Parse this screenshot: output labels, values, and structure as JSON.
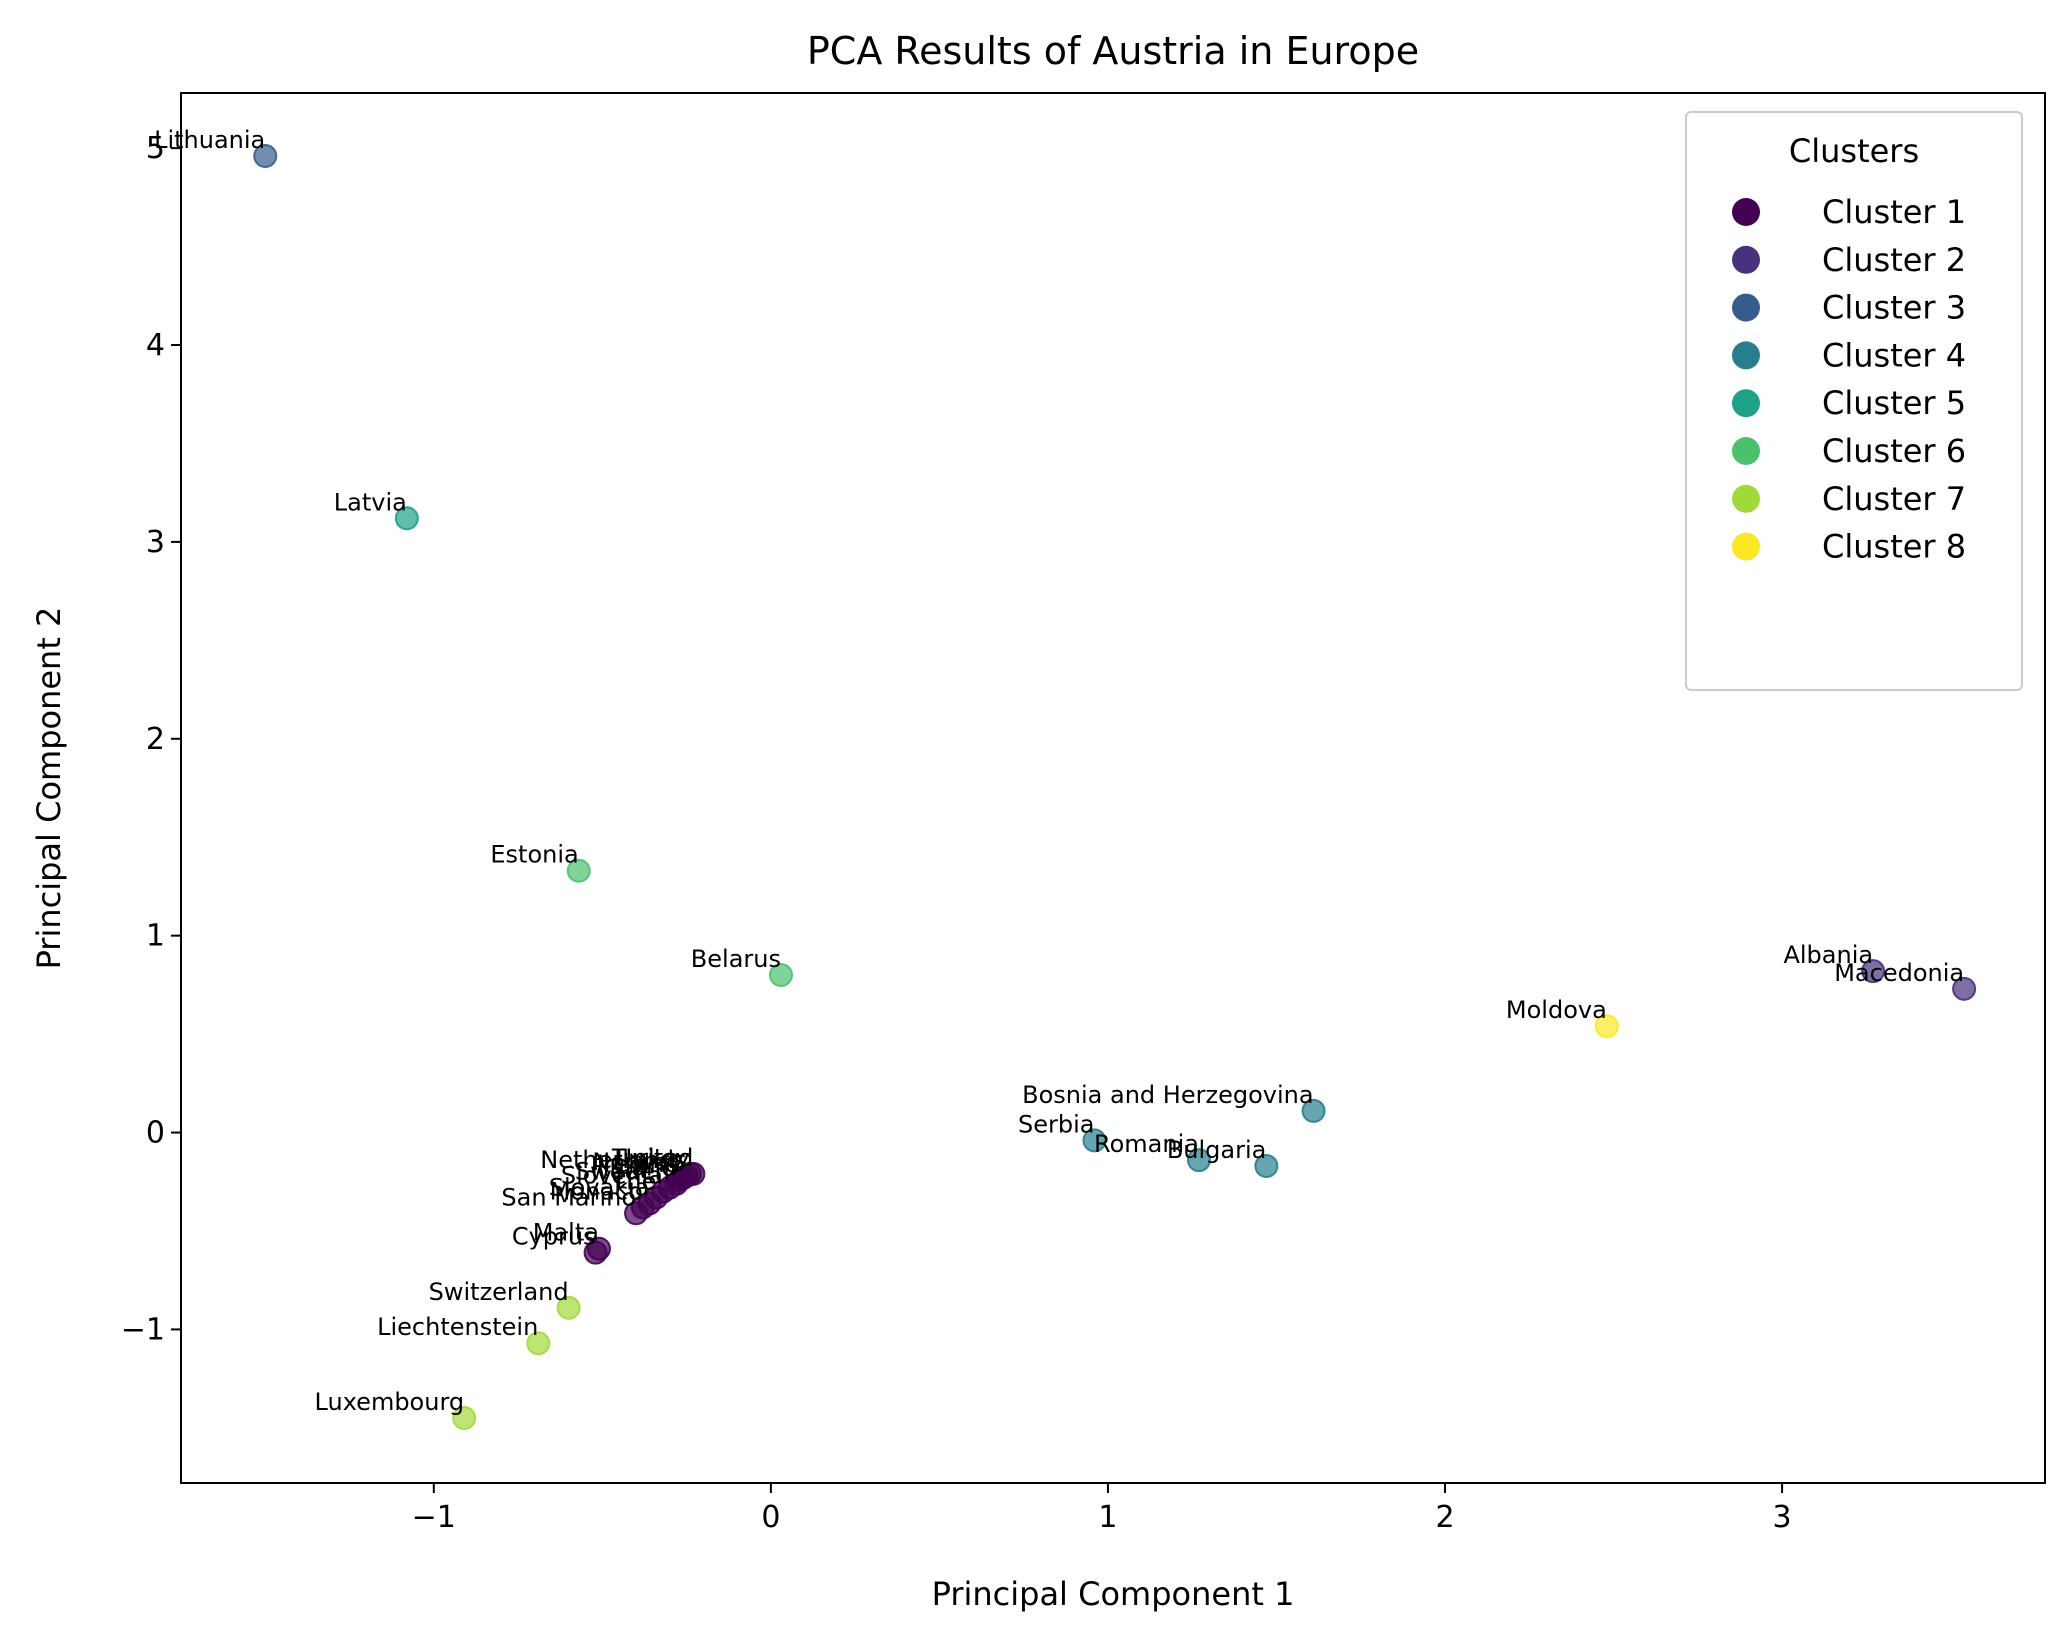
{
  "chart_data": {
    "type": "scatter",
    "title": "PCA Results of Austria in Europe",
    "xlabel": "Principal Component 1",
    "ylabel": "Principal Component 2",
    "xlim": [
      -1.75,
      3.78
    ],
    "ylim": [
      -1.78,
      5.28
    ],
    "xticks": [
      -1,
      0,
      1,
      2,
      3
    ],
    "yticks": [
      -1,
      0,
      1,
      2,
      3,
      4,
      5
    ],
    "xtick_labels": [
      "−1",
      "0",
      "1",
      "2",
      "3"
    ],
    "ytick_labels": [
      "−1",
      "0",
      "1",
      "2",
      "3",
      "4",
      "5"
    ],
    "grid": false,
    "legend": {
      "title": "Clusters",
      "placement": "top-right",
      "entries": [
        {
          "name": "Cluster 1",
          "color": "#440154"
        },
        {
          "name": "Cluster 2",
          "color": "#46327e"
        },
        {
          "name": "Cluster 3",
          "color": "#365c8d"
        },
        {
          "name": "Cluster 4",
          "color": "#277f8e"
        },
        {
          "name": "Cluster 5",
          "color": "#1fa187"
        },
        {
          "name": "Cluster 6",
          "color": "#4ac16d"
        },
        {
          "name": "Cluster 7",
          "color": "#a0da39"
        },
        {
          "name": "Cluster 8",
          "color": "#fde725"
        }
      ]
    },
    "points": [
      {
        "label": "Lithuania",
        "x": -1.5,
        "y": 4.96,
        "cluster": 3
      },
      {
        "label": "Latvia",
        "x": -1.08,
        "y": 3.12,
        "cluster": 5
      },
      {
        "label": "Estonia",
        "x": -0.57,
        "y": 1.33,
        "cluster": 6
      },
      {
        "label": "Belarus",
        "x": 0.03,
        "y": 0.8,
        "cluster": 6
      },
      {
        "label": "Albania",
        "x": 3.27,
        "y": 0.82,
        "cluster": 2
      },
      {
        "label": "Macedonia",
        "x": 3.54,
        "y": 0.73,
        "cluster": 2
      },
      {
        "label": "Moldova",
        "x": 2.48,
        "y": 0.54,
        "cluster": 8
      },
      {
        "label": "Bosnia and Herzegovina",
        "x": 1.61,
        "y": 0.11,
        "cluster": 4
      },
      {
        "label": "Serbia",
        "x": 0.96,
        "y": -0.04,
        "cluster": 4
      },
      {
        "label": "Romania",
        "x": 1.27,
        "y": -0.14,
        "cluster": 4
      },
      {
        "label": "Bulgaria",
        "x": 1.47,
        "y": -0.17,
        "cluster": 4
      },
      {
        "label": "United",
        "x": -0.23,
        "y": -0.21,
        "cluster": 1
      },
      {
        "label": "Turkey",
        "x": -0.24,
        "y": -0.21,
        "cluster": 1
      },
      {
        "label": "Netherlands",
        "x": -0.25,
        "y": -0.22,
        "cluster": 1
      },
      {
        "label": "Norway",
        "x": -0.26,
        "y": -0.23,
        "cluster": 1
      },
      {
        "label": "Ireland",
        "x": -0.27,
        "y": -0.24,
        "cluster": 1
      },
      {
        "label": "Finland",
        "x": -0.28,
        "y": -0.26,
        "cluster": 1
      },
      {
        "label": "Sweden",
        "x": -0.3,
        "y": -0.28,
        "cluster": 1
      },
      {
        "label": "Slovenia",
        "x": -0.32,
        "y": -0.3,
        "cluster": 1
      },
      {
        "label": "The",
        "x": -0.34,
        "y": -0.33,
        "cluster": 1
      },
      {
        "label": "Slovakia",
        "x": -0.36,
        "y": -0.36,
        "cluster": 1
      },
      {
        "label": "Monaco",
        "x": -0.38,
        "y": -0.38,
        "cluster": 1
      },
      {
        "label": "San Marino",
        "x": -0.4,
        "y": -0.41,
        "cluster": 1
      },
      {
        "label": "Malta",
        "x": -0.51,
        "y": -0.59,
        "cluster": 1
      },
      {
        "label": "Cyprus",
        "x": -0.52,
        "y": -0.61,
        "cluster": 1
      },
      {
        "label": "Switzerland",
        "x": -0.6,
        "y": -0.89,
        "cluster": 7
      },
      {
        "label": "Liechtenstein",
        "x": -0.69,
        "y": -1.07,
        "cluster": 7
      },
      {
        "label": "Luxembourg",
        "x": -0.91,
        "y": -1.45,
        "cluster": 7
      }
    ]
  }
}
